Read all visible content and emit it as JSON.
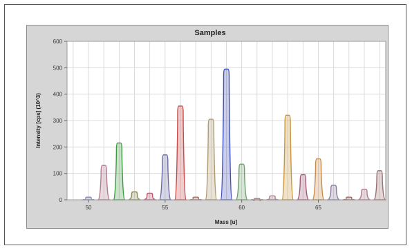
{
  "chart_data": {
    "type": "area",
    "title": "Samples",
    "xlabel": "Mass [u]",
    "ylabel": "Intensity [cps] (10^3)",
    "xlim": [
      48.6,
      69.4
    ],
    "ylim": [
      0,
      600
    ],
    "x_ticks": [
      "50",
      "55",
      "60",
      "65"
    ],
    "y_ticks": [
      "0",
      "100",
      "200",
      "300",
      "400",
      "500",
      "600"
    ],
    "grid": true,
    "legend": "none",
    "peaks": [
      {
        "x": 50.0,
        "y": 10,
        "color": "#8888aa"
      },
      {
        "x": 51.0,
        "y": 130,
        "color": "#b07a90"
      },
      {
        "x": 52.0,
        "y": 215,
        "color": "#3f9a3f"
      },
      {
        "x": 53.0,
        "y": 30,
        "color": "#8a8a5a"
      },
      {
        "x": 54.0,
        "y": 25,
        "color": "#b05a70"
      },
      {
        "x": 55.0,
        "y": 170,
        "color": "#6a6aa0"
      },
      {
        "x": 56.0,
        "y": 355,
        "color": "#c84848"
      },
      {
        "x": 57.0,
        "y": 10,
        "color": "#a07060"
      },
      {
        "x": 58.0,
        "y": 305,
        "color": "#b09a70"
      },
      {
        "x": 59.0,
        "y": 495,
        "color": "#4050b8"
      },
      {
        "x": 60.0,
        "y": 135,
        "color": "#6aa06a"
      },
      {
        "x": 61.0,
        "y": 5,
        "color": "#9a7a7a"
      },
      {
        "x": 62.0,
        "y": 15,
        "color": "#a08090"
      },
      {
        "x": 63.0,
        "y": 320,
        "color": "#c8963a"
      },
      {
        "x": 64.0,
        "y": 95,
        "color": "#a05878"
      },
      {
        "x": 65.0,
        "y": 155,
        "color": "#c88a48"
      },
      {
        "x": 66.0,
        "y": 55,
        "color": "#8a7a9a"
      },
      {
        "x": 67.0,
        "y": 10,
        "color": "#9a6a6a"
      },
      {
        "x": 68.0,
        "y": 40,
        "color": "#b07a90"
      },
      {
        "x": 69.0,
        "y": 110,
        "color": "#9a7070"
      }
    ],
    "colors": {
      "panel_background": "#d6d6d6",
      "plot_background": "#ffffff",
      "grid": "#d2d2d2"
    }
  }
}
